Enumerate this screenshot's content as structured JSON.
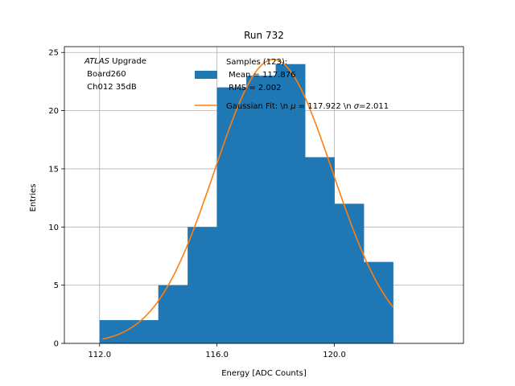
{
  "chart_data": {
    "type": "bar",
    "title": "Run 732",
    "xlabel": "Energy [ADC Counts]",
    "ylabel": "Entries",
    "xlim": [
      110.8,
      124.4
    ],
    "ylim": [
      0,
      25.5
    ],
    "xticks": [
      112.0,
      116.0,
      120.0
    ],
    "xtick_labels": [
      "112.0",
      "116.0",
      "120.0"
    ],
    "yticks": [
      0,
      5,
      10,
      15,
      20,
      25
    ],
    "ytick_labels": [
      "0",
      "5",
      "10",
      "15",
      "20",
      "25"
    ],
    "grid": true,
    "bin_edges": [
      112,
      113,
      114,
      115,
      116,
      117,
      118,
      119,
      120,
      121,
      122
    ],
    "counts": [
      2,
      2,
      5,
      10,
      22,
      23,
      24,
      16,
      12,
      7
    ],
    "bar_color": "#1f77b4",
    "fit": {
      "type": "gaussian",
      "mean": 117.922,
      "sigma": 2.011,
      "amplitude": 24.4,
      "x_range": [
        112.1,
        122.0
      ],
      "color": "#ff7f0e"
    },
    "annotation": {
      "line1_italic": "ATLAS",
      "line1_rest": " Upgrade",
      "line2": " Board260",
      "line3": " Ch012 35dB"
    },
    "legend": {
      "position": "top-right",
      "hist_label_lines": [
        "Samples (123):",
        " Mean = 117.876",
        " RMS = 2.002"
      ],
      "fit_label_prefix": "Gaussian Fit: \\n ",
      "fit_label_mu": "μ",
      "fit_label_mid": " = 117.922 \\n ",
      "fit_label_sigma": "σ",
      "fit_label_end": "=2.011"
    }
  }
}
